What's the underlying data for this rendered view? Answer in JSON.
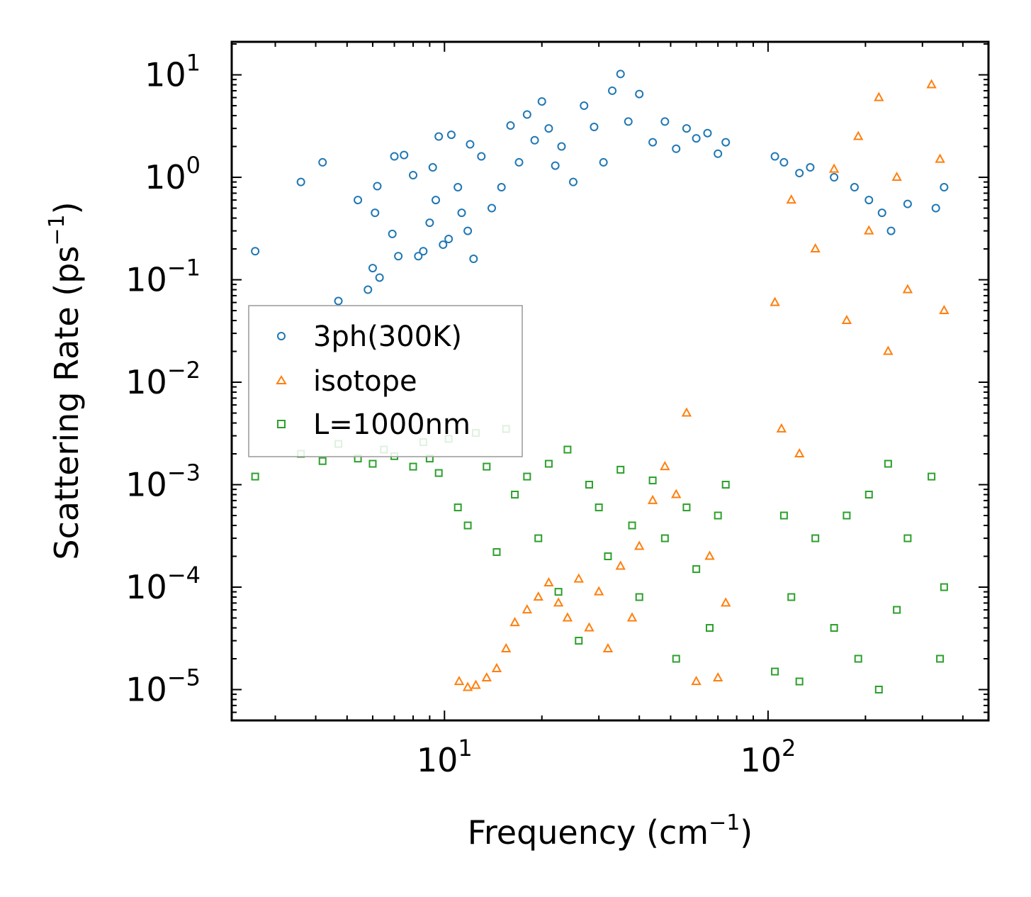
{
  "chart_data": {
    "type": "scatter",
    "title": "",
    "xlabel": {
      "base": "Frequency (cm",
      "sup": "−1",
      "tail": ")"
    },
    "ylabel": {
      "base": "Scattering Rate (ps",
      "sup": "−1",
      "tail": ")"
    },
    "xscale": "log",
    "yscale": "log",
    "xlim": [
      2.2,
      480
    ],
    "ylim": [
      5e-06,
      21
    ],
    "grid": false,
    "legend_position": "center-left",
    "x_ticks": [
      {
        "value": 10,
        "base": "10",
        "sup": "1"
      },
      {
        "value": 100,
        "base": "10",
        "sup": "2"
      }
    ],
    "y_ticks": [
      {
        "value": 1e-05,
        "base": "10",
        "sup": "−5"
      },
      {
        "value": 0.0001,
        "base": "10",
        "sup": "−4"
      },
      {
        "value": 0.001,
        "base": "10",
        "sup": "−3"
      },
      {
        "value": 0.01,
        "base": "10",
        "sup": "−2"
      },
      {
        "value": 0.1,
        "base": "10",
        "sup": "−1"
      },
      {
        "value": 1,
        "base": "10",
        "sup": "0"
      },
      {
        "value": 10,
        "base": "10",
        "sup": "1"
      }
    ],
    "series": [
      {
        "name": "3ph(300K)",
        "marker": "circle",
        "color": "#1f77b4",
        "points": [
          [
            2.6,
            0.19
          ],
          [
            3.6,
            0.9
          ],
          [
            4.2,
            1.4
          ],
          [
            4.7,
            0.062
          ],
          [
            5.4,
            0.6
          ],
          [
            5.8,
            0.08
          ],
          [
            6.0,
            0.13
          ],
          [
            6.1,
            0.45
          ],
          [
            6.2,
            0.82
          ],
          [
            6.3,
            0.105
          ],
          [
            6.9,
            0.28
          ],
          [
            7.0,
            1.6
          ],
          [
            7.2,
            0.17
          ],
          [
            7.5,
            1.65
          ],
          [
            8.0,
            1.05
          ],
          [
            8.3,
            0.17
          ],
          [
            8.6,
            0.19
          ],
          [
            9.0,
            0.36
          ],
          [
            9.2,
            1.25
          ],
          [
            9.4,
            0.6
          ],
          [
            9.6,
            2.5
          ],
          [
            9.9,
            0.22
          ],
          [
            10.3,
            0.25
          ],
          [
            10.5,
            2.6
          ],
          [
            11.0,
            0.8
          ],
          [
            11.3,
            0.45
          ],
          [
            11.8,
            0.3
          ],
          [
            12.0,
            2.1
          ],
          [
            12.3,
            0.16
          ],
          [
            13.0,
            1.6
          ],
          [
            14.0,
            0.5
          ],
          [
            15.0,
            0.8
          ],
          [
            16.0,
            3.2
          ],
          [
            17.0,
            1.4
          ],
          [
            18.0,
            4.1
          ],
          [
            19.0,
            2.3
          ],
          [
            20.0,
            5.5
          ],
          [
            21.0,
            3.0
          ],
          [
            22.0,
            1.3
          ],
          [
            23.0,
            2.0
          ],
          [
            25.0,
            0.9
          ],
          [
            27.0,
            5.0
          ],
          [
            29.0,
            3.1
          ],
          [
            31.0,
            1.4
          ],
          [
            33.0,
            7.0
          ],
          [
            35.0,
            10.2
          ],
          [
            37.0,
            3.5
          ],
          [
            40.0,
            6.5
          ],
          [
            44.0,
            2.2
          ],
          [
            48.0,
            3.5
          ],
          [
            52.0,
            1.9
          ],
          [
            56.0,
            3.0
          ],
          [
            60.0,
            2.4
          ],
          [
            65.0,
            2.7
          ],
          [
            70.0,
            1.7
          ],
          [
            74.0,
            2.2
          ],
          [
            105,
            1.6
          ],
          [
            112,
            1.4
          ],
          [
            125,
            1.1
          ],
          [
            135,
            1.25
          ],
          [
            160,
            1.0
          ],
          [
            185,
            0.8
          ],
          [
            205,
            0.6
          ],
          [
            225,
            0.45
          ],
          [
            240,
            0.3
          ],
          [
            270,
            0.55
          ],
          [
            330,
            0.5
          ],
          [
            350,
            0.8
          ]
        ]
      },
      {
        "name": "isotope",
        "marker": "triangle",
        "color": "#ff7f0e",
        "points": [
          [
            11.1,
            1.2e-05
          ],
          [
            11.8,
            1.05e-05
          ],
          [
            12.5,
            1.1e-05
          ],
          [
            13.5,
            1.3e-05
          ],
          [
            14.5,
            1.6e-05
          ],
          [
            15.5,
            2.5e-05
          ],
          [
            16.5,
            4.5e-05
          ],
          [
            18.0,
            6e-05
          ],
          [
            19.5,
            8e-05
          ],
          [
            21.0,
            0.00011
          ],
          [
            22.5,
            7e-05
          ],
          [
            24.0,
            5e-05
          ],
          [
            26.0,
            0.00012
          ],
          [
            28.0,
            4e-05
          ],
          [
            30.0,
            9e-05
          ],
          [
            32.0,
            2.5e-05
          ],
          [
            35.0,
            0.00016
          ],
          [
            38.0,
            5e-05
          ],
          [
            40.0,
            0.00025
          ],
          [
            44.0,
            0.0007
          ],
          [
            48.0,
            0.0015
          ],
          [
            52.0,
            0.0008
          ],
          [
            56.0,
            0.005
          ],
          [
            60.0,
            1.2e-05
          ],
          [
            66.0,
            0.0002
          ],
          [
            70.0,
            1.3e-05
          ],
          [
            74.0,
            7e-05
          ],
          [
            105,
            0.06
          ],
          [
            110,
            0.0035
          ],
          [
            118,
            0.6
          ],
          [
            125,
            0.002
          ],
          [
            140,
            0.2
          ],
          [
            160,
            1.2
          ],
          [
            175,
            0.04
          ],
          [
            190,
            2.5
          ],
          [
            205,
            0.3
          ],
          [
            220,
            6.0
          ],
          [
            235,
            0.02
          ],
          [
            250,
            1.0
          ],
          [
            270,
            0.08
          ],
          [
            320,
            8.0
          ],
          [
            340,
            1.5
          ],
          [
            350,
            0.05
          ]
        ]
      },
      {
        "name": "L=1000nm",
        "marker": "square",
        "color": "#2ca02c",
        "points": [
          [
            2.6,
            0.0012
          ],
          [
            3.6,
            0.002
          ],
          [
            4.2,
            0.0017
          ],
          [
            4.7,
            0.0025
          ],
          [
            5.4,
            0.0018
          ],
          [
            6.0,
            0.0016
          ],
          [
            6.5,
            0.0022
          ],
          [
            7.0,
            0.0019
          ],
          [
            8.0,
            0.0015
          ],
          [
            8.6,
            0.0026
          ],
          [
            9.0,
            0.0018
          ],
          [
            9.6,
            0.0013
          ],
          [
            10.3,
            0.0028
          ],
          [
            11.0,
            0.0006
          ],
          [
            11.8,
            0.0004
          ],
          [
            12.5,
            0.0032
          ],
          [
            13.5,
            0.0015
          ],
          [
            14.5,
            0.00022
          ],
          [
            15.5,
            0.0035
          ],
          [
            16.5,
            0.0008
          ],
          [
            18.0,
            0.0012
          ],
          [
            19.5,
            0.0003
          ],
          [
            21.0,
            0.0016
          ],
          [
            22.5,
            9e-05
          ],
          [
            24.0,
            0.0022
          ],
          [
            26.0,
            3e-05
          ],
          [
            28.0,
            0.001
          ],
          [
            30.0,
            0.0006
          ],
          [
            32.0,
            0.0002
          ],
          [
            35.0,
            0.0014
          ],
          [
            38.0,
            0.0004
          ],
          [
            40.0,
            8e-05
          ],
          [
            44.0,
            0.0011
          ],
          [
            48.0,
            0.0003
          ],
          [
            52.0,
            2e-05
          ],
          [
            56.0,
            0.0006
          ],
          [
            60.0,
            0.00015
          ],
          [
            66.0,
            4e-05
          ],
          [
            70.0,
            0.0005
          ],
          [
            74.0,
            0.001
          ],
          [
            105,
            1.5e-05
          ],
          [
            112,
            0.0005
          ],
          [
            118,
            8e-05
          ],
          [
            125,
            1.2e-05
          ],
          [
            140,
            0.0003
          ],
          [
            160,
            4e-05
          ],
          [
            175,
            0.0005
          ],
          [
            190,
            2e-05
          ],
          [
            205,
            0.0008
          ],
          [
            220,
            1e-05
          ],
          [
            235,
            0.0016
          ],
          [
            250,
            6e-05
          ],
          [
            270,
            0.0003
          ],
          [
            320,
            0.0012
          ],
          [
            340,
            2e-05
          ],
          [
            350,
            0.0001
          ]
        ]
      }
    ]
  }
}
